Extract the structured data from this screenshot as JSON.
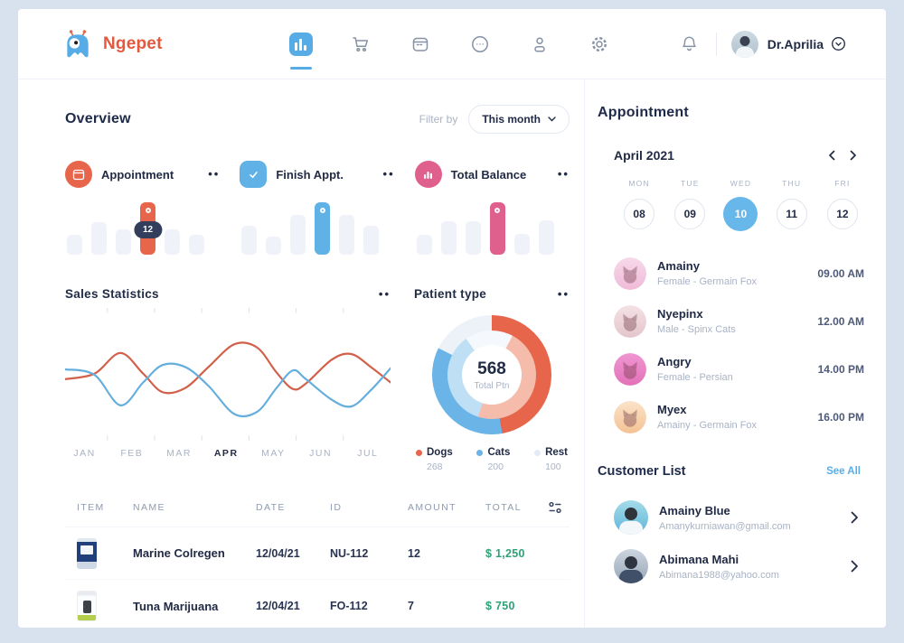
{
  "app": {
    "name": "Ngepet"
  },
  "header": {
    "nav_items": [
      {
        "id": "dashboard",
        "icon": "bar-chart-icon",
        "active": true
      },
      {
        "id": "shop",
        "icon": "cart-icon",
        "active": false
      },
      {
        "id": "schedule",
        "icon": "calendar-icon",
        "active": false
      },
      {
        "id": "messages",
        "icon": "chat-icon",
        "active": false
      },
      {
        "id": "patients",
        "icon": "user-icon",
        "active": false
      },
      {
        "id": "settings",
        "icon": "gear-icon",
        "active": false
      }
    ],
    "user": {
      "name": "Dr.Aprilia"
    }
  },
  "overview": {
    "title": "Overview",
    "filter_label": "Filter by",
    "filter_value": "This month"
  },
  "stat_cards": [
    {
      "title": "Appointment",
      "accent": "#E7654B",
      "badge": "12",
      "bars": [
        38,
        62,
        48,
        100,
        48,
        38
      ],
      "highlight_index": 3,
      "menu": "••"
    },
    {
      "title": "Finish Appt.",
      "accent": "#60B2E6",
      "badge": null,
      "bars": [
        55,
        35,
        76,
        100,
        76,
        55
      ],
      "highlight_index": 3,
      "menu": "••"
    },
    {
      "title": "Total Balance",
      "accent": "#DF5F8D",
      "badge": null,
      "bars": [
        38,
        63,
        63,
        100,
        40,
        66
      ],
      "highlight_index": 3,
      "menu": "••"
    }
  ],
  "chart_data": [
    {
      "type": "line",
      "title": "Sales Statistics",
      "menu": "••",
      "x": [
        "JAN",
        "FEB",
        "MAR",
        "APR",
        "MAY",
        "JUN",
        "JUL"
      ],
      "highlight_x": "APR",
      "label_positions": [
        6,
        20.5,
        35,
        49.5,
        64,
        78.5,
        93
      ],
      "tick_positions": [
        13,
        27.5,
        42,
        56.5,
        71,
        85.5
      ],
      "grid": false,
      "legend": "none",
      "y_normalized": "0=top,100=bottom (stylized wave, no numeric axis shown)",
      "series": [
        {
          "name": "sales-red",
          "color": "#D2604A",
          "points": [
            [
              0,
              54
            ],
            [
              9,
              49
            ],
            [
              17,
              30
            ],
            [
              24,
              49
            ],
            [
              30,
              66
            ],
            [
              37,
              62
            ],
            [
              44,
              43
            ],
            [
              52,
              22
            ],
            [
              59,
              25
            ],
            [
              65,
              48
            ],
            [
              70,
              63
            ],
            [
              74,
              58
            ],
            [
              82,
              36
            ],
            [
              88,
              31
            ],
            [
              94,
              43
            ],
            [
              100,
              57
            ]
          ]
        },
        {
          "name": "sales-blue",
          "color": "#64AEDD",
          "points": [
            [
              0,
              45
            ],
            [
              9,
              50
            ],
            [
              17,
              78
            ],
            [
              24,
              57
            ],
            [
              30,
              41
            ],
            [
              37,
              43
            ],
            [
              44,
              60
            ],
            [
              52,
              86
            ],
            [
              59,
              84
            ],
            [
              65,
              62
            ],
            [
              70,
              46
            ],
            [
              74,
              54
            ],
            [
              82,
              73
            ],
            [
              88,
              79
            ],
            [
              94,
              64
            ],
            [
              100,
              44
            ]
          ]
        }
      ]
    },
    {
      "type": "donut",
      "title": "Patient type",
      "menu": "••",
      "center_value": "568",
      "center_label": "Total Ptn",
      "rotation_inner_deg": 28,
      "slices": [
        {
          "label": "Dogs",
          "value": 268,
          "color": "#E7654B",
          "light": "#F5BCAC"
        },
        {
          "label": "Cats",
          "value": 200,
          "color": "#6AB4E8",
          "light": "#BFDFF5"
        },
        {
          "label": "Rest",
          "value": 100,
          "color": "#EDF2F9",
          "light": "#F5F8FC"
        }
      ]
    }
  ],
  "table": {
    "headers": [
      "ITEM",
      "NAME",
      "DATE",
      "ID",
      "AMOUNT",
      "TOTAL"
    ],
    "rows": [
      {
        "name": "Marine Colregen",
        "date": "12/04/21",
        "id": "NU-112",
        "amount": "12",
        "total": "$ 1,250"
      },
      {
        "name": "Tuna Marijuana",
        "date": "12/04/21",
        "id": "FO-112",
        "amount": "7",
        "total": "$ 750"
      }
    ]
  },
  "appointment_panel": {
    "title": "Appointment",
    "month": "April 2021",
    "days": [
      "MON",
      "TUE",
      "WED",
      "THU",
      "FRI"
    ],
    "dates": [
      "08",
      "09",
      "10",
      "11",
      "12"
    ],
    "selected_date": "10",
    "items": [
      {
        "name": "Amainy",
        "detail": "Female - Germain Fox",
        "time": "09.00 AM",
        "avatar_from": "#F7D9E9",
        "avatar_to": "#F0BAD8"
      },
      {
        "name": "Nyepinx",
        "detail": "Male - Spinx Cats",
        "time": "12.00 AM",
        "avatar_from": "#F4E1E5",
        "avatar_to": "#E4C6CD"
      },
      {
        "name": "Angry",
        "detail": "Female - Persian",
        "time": "14.00 PM",
        "avatar_from": "#F095D2",
        "avatar_to": "#E272B8"
      },
      {
        "name": "Myex",
        "detail": "Amainy - Germain Fox",
        "time": "16.00 PM",
        "avatar_from": "#FBE3C9",
        "avatar_to": "#F4C294"
      }
    ]
  },
  "customer_list": {
    "title": "Customer List",
    "see_all": "See All",
    "customers": [
      {
        "name": "Amainy Blue",
        "email": "Amanykurniawan@gmail.com"
      },
      {
        "name": "Abimana Mahi",
        "email": "Abimana1988@yahoo.com"
      }
    ]
  }
}
